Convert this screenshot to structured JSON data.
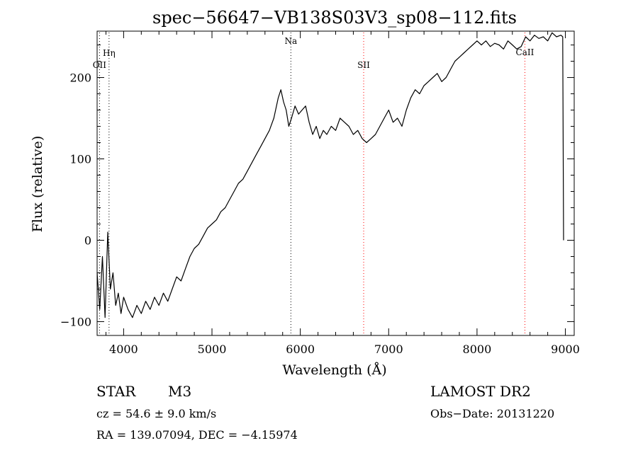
{
  "chart_data": {
    "type": "line",
    "title": "spec−56647−VB138S03V3_sp08−112.fits",
    "xlabel": "Wavelength (Å)",
    "ylabel": "Flux (relative)",
    "xlim": [
      3700,
      9100
    ],
    "ylim": [
      -117,
      257
    ],
    "xticks": [
      {
        "value": 4000,
        "label": "4000"
      },
      {
        "value": 5000,
        "label": "5000"
      },
      {
        "value": 6000,
        "label": "6000"
      },
      {
        "value": 7000,
        "label": "7000"
      },
      {
        "value": 8000,
        "label": "8000"
      },
      {
        "value": 9000,
        "label": "9000"
      }
    ],
    "yticks": [
      {
        "value": -100,
        "label": "−100"
      },
      {
        "value": 0,
        "label": "0"
      },
      {
        "value": 100,
        "label": "100"
      },
      {
        "value": 200,
        "label": "200"
      }
    ],
    "grid": false,
    "lines": [
      {
        "label": "OII",
        "wavelength": 3727,
        "color": "#000000"
      },
      {
        "label": "Hη",
        "wavelength": 3835,
        "color": "#000000"
      },
      {
        "label": "Na",
        "wavelength": 5893,
        "color": "#000000"
      },
      {
        "label": "SII",
        "wavelength": 6717,
        "color": "#ff0000"
      },
      {
        "label": "CaII",
        "wavelength": 8542,
        "color": "#ff0000"
      }
    ],
    "series": [
      {
        "color": "#000000",
        "x": [
          3700,
          3730,
          3760,
          3790,
          3820,
          3850,
          3880,
          3910,
          3940,
          3970,
          4000,
          4050,
          4100,
          4150,
          4200,
          4250,
          4300,
          4350,
          4400,
          4450,
          4500,
          4550,
          4600,
          4650,
          4700,
          4750,
          4800,
          4850,
          4900,
          4950,
          5000,
          5050,
          5100,
          5150,
          5200,
          5250,
          5300,
          5350,
          5400,
          5450,
          5500,
          5550,
          5600,
          5650,
          5700,
          5750,
          5780,
          5810,
          5840,
          5870,
          5900,
          5940,
          5980,
          6020,
          6060,
          6100,
          6140,
          6180,
          6220,
          6260,
          6300,
          6350,
          6400,
          6450,
          6500,
          6550,
          6600,
          6650,
          6700,
          6750,
          6800,
          6850,
          6900,
          6950,
          7000,
          7050,
          7100,
          7150,
          7200,
          7250,
          7300,
          7350,
          7400,
          7450,
          7500,
          7550,
          7600,
          7650,
          7700,
          7750,
          7800,
          7850,
          7900,
          7950,
          8000,
          8050,
          8100,
          8150,
          8200,
          8250,
          8300,
          8350,
          8400,
          8450,
          8500,
          8550,
          8600,
          8650,
          8700,
          8750,
          8800,
          8850,
          8900,
          8950,
          8970,
          8980
        ],
        "y": [
          -40,
          -85,
          -20,
          -95,
          10,
          -60,
          -40,
          -80,
          -65,
          -90,
          -70,
          -85,
          -95,
          -80,
          -90,
          -75,
          -85,
          -70,
          -80,
          -65,
          -75,
          -60,
          -45,
          -50,
          -35,
          -20,
          -10,
          -5,
          5,
          15,
          20,
          25,
          35,
          40,
          50,
          60,
          70,
          75,
          85,
          95,
          105,
          115,
          125,
          135,
          150,
          175,
          185,
          170,
          160,
          140,
          150,
          165,
          155,
          160,
          165,
          145,
          130,
          140,
          125,
          135,
          130,
          140,
          135,
          150,
          145,
          140,
          130,
          135,
          125,
          120,
          125,
          130,
          140,
          150,
          160,
          145,
          150,
          140,
          160,
          175,
          185,
          180,
          190,
          195,
          200,
          205,
          195,
          200,
          210,
          220,
          225,
          230,
          235,
          240,
          245,
          240,
          245,
          238,
          242,
          240,
          235,
          245,
          240,
          235,
          238,
          250,
          245,
          252,
          248,
          250,
          245,
          255,
          250,
          252,
          250,
          0
        ]
      }
    ]
  },
  "info": {
    "object_type": "STAR",
    "subclass": "M3",
    "cz": "cz = 54.6 ± 9.0 km/s",
    "coords": "RA = 139.07094,  DEC =  −4.15974",
    "survey": "LAMOST DR2",
    "obs_date": "Obs−Date: 20131220"
  }
}
